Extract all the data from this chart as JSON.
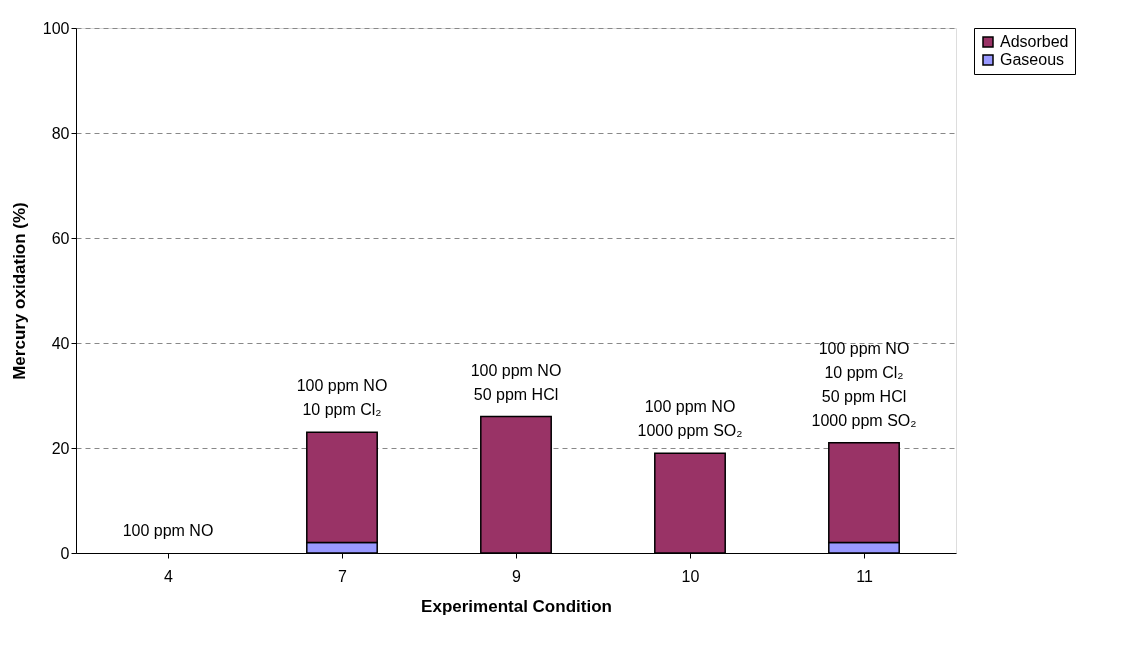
{
  "chart_data": {
    "type": "bar",
    "xlabel": "Experimental Condition",
    "ylabel": "Mercury oxidation (%)",
    "categories": [
      "4",
      "7",
      "9",
      "10",
      "11"
    ],
    "stacked": true,
    "series": [
      {
        "name": "Gaseous",
        "color": "#9999ff",
        "values": [
          0,
          2,
          0,
          0,
          2
        ]
      },
      {
        "name": "Adsorbed",
        "color": "#993366",
        "values": [
          0,
          21,
          26,
          19,
          19
        ]
      }
    ],
    "ylim": [
      0,
      100
    ],
    "yticks": [
      0,
      20,
      40,
      60,
      80,
      100
    ],
    "grid": "y",
    "legend": "right",
    "annotations": [
      "100 ppm NO",
      "100 ppm NO\n10 ppm Cl₂",
      "100 ppm NO\n50 ppm HCl",
      "100 ppm NO\n1000 ppm SO₂",
      "100 ppm NO\n10 ppm Cl₂\n50 ppm HCl\n1000 ppm SO₂"
    ]
  }
}
